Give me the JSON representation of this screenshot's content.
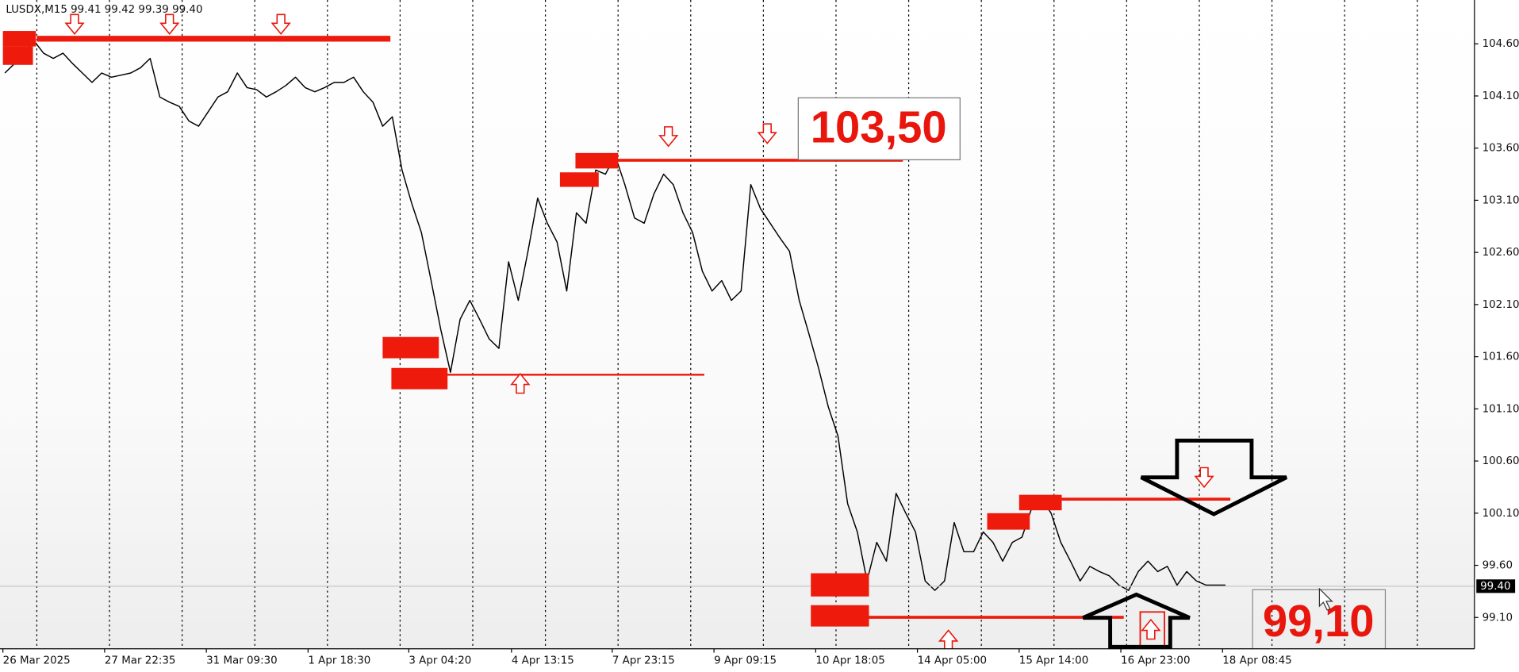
{
  "chart_data": {
    "type": "line",
    "title": "LUSDX,M15  99.41 99.42 99.39 99.40",
    "annotations": [
      "103,50",
      "99,10"
    ],
    "color": "#000000",
    "x": [
      5,
      15,
      25,
      35,
      45,
      55,
      65,
      75,
      85,
      95,
      105,
      115,
      125,
      135,
      145,
      155,
      165,
      175,
      185,
      195,
      205,
      215,
      225,
      235,
      245,
      255,
      265,
      275,
      285,
      295,
      305,
      315,
      325,
      335,
      345,
      355,
      365,
      375,
      385,
      395,
      405,
      415,
      425,
      435,
      445,
      455,
      465,
      475,
      485,
      495,
      505,
      515,
      525,
      535,
      545,
      555,
      565,
      575,
      585,
      595,
      605,
      615,
      625,
      635,
      645,
      655,
      665,
      675,
      685,
      695,
      705,
      715,
      725,
      735,
      745,
      755,
      765,
      775,
      785,
      795,
      805,
      815,
      825,
      835,
      845,
      855,
      865,
      875,
      885,
      895,
      905,
      915,
      925,
      935,
      945,
      955,
      965,
      975,
      985,
      995,
      1005,
      1015,
      1025,
      1035,
      1045,
      1055,
      1065,
      1075,
      1085,
      1095,
      1105,
      1115,
      1125,
      1135,
      1145,
      1155,
      1165,
      1175,
      1185,
      1195,
      1205,
      1215,
      1225,
      1235,
      1245,
      1255,
      1265
    ],
    "values": [
      104.32,
      104.41,
      104.51,
      104.63,
      104.51,
      104.46,
      104.51,
      104.41,
      104.32,
      104.23,
      104.32,
      104.28,
      104.3,
      104.32,
      104.37,
      104.46,
      104.09,
      104.04,
      104.0,
      103.86,
      103.81,
      103.95,
      104.09,
      104.14,
      104.32,
      104.18,
      104.16,
      104.09,
      104.14,
      104.2,
      104.28,
      104.18,
      104.14,
      104.18,
      104.23,
      104.23,
      104.28,
      104.14,
      104.04,
      103.81,
      103.9,
      103.39,
      103.07,
      102.79,
      102.33,
      101.86,
      101.45,
      101.96,
      102.14,
      101.96,
      101.77,
      101.68,
      102.51,
      102.14,
      102.61,
      103.12,
      102.88,
      102.7,
      102.23,
      102.98,
      102.88,
      103.39,
      103.35,
      103.53,
      103.25,
      102.93,
      102.88,
      103.16,
      103.35,
      103.25,
      102.98,
      102.79,
      102.42,
      102.23,
      102.33,
      102.14,
      102.23,
      103.25,
      103.02,
      102.88,
      102.74,
      102.61,
      102.14,
      101.82,
      101.49,
      101.12,
      100.84,
      100.19,
      99.92,
      99.45,
      99.82,
      99.64,
      100.29,
      100.1,
      99.92,
      99.45,
      99.36,
      99.45,
      100.01,
      99.73,
      99.73,
      99.92,
      99.82,
      99.64,
      99.82,
      99.87,
      100.15,
      100.24,
      100.1,
      99.82,
      99.64,
      99.45,
      99.59,
      99.54,
      99.5,
      99.41,
      99.36,
      99.54,
      99.64,
      99.54,
      99.59,
      99.41,
      99.54,
      99.45,
      99.41,
      99.41,
      99.41
    ],
    "xlim": [
      0,
      1522
    ],
    "xticks": [
      {
        "value": 3,
        "label": "26 Mar 2025"
      },
      {
        "value": 108,
        "label": "27 Mar 22:35"
      },
      {
        "value": 213,
        "label": "31 Mar 09:30"
      },
      {
        "value": 318,
        "label": "1 Apr 18:30"
      },
      {
        "value": 422,
        "label": "3 Apr 04:20"
      },
      {
        "value": 528,
        "label": "4 Apr 13:15"
      },
      {
        "value": 632,
        "label": "7 Apr 23:15"
      },
      {
        "value": 737,
        "label": "9 Apr 09:15"
      },
      {
        "value": 842,
        "label": "10 Apr 18:05"
      },
      {
        "value": 947,
        "label": "14 Apr 05:00"
      },
      {
        "value": 1052,
        "label": "15 Apr 14:00"
      },
      {
        "value": 1157,
        "label": "16 Apr 23:00"
      },
      {
        "value": 1262,
        "label": "18 Apr 08:45"
      }
    ],
    "ylim": [
      98.8,
      105.02
    ],
    "yticks": [
      {
        "value": 104.6,
        "label": "104.60"
      },
      {
        "value": 104.1,
        "label": "104.10"
      },
      {
        "value": 103.6,
        "label": "103.60"
      },
      {
        "value": 103.1,
        "label": "103.10"
      },
      {
        "value": 102.6,
        "label": "102.60"
      },
      {
        "value": 102.1,
        "label": "102.10"
      },
      {
        "value": 101.6,
        "label": "101.60"
      },
      {
        "value": 101.1,
        "label": "101.10"
      },
      {
        "value": 100.6,
        "label": "100.60"
      },
      {
        "value": 100.1,
        "label": "100.10"
      },
      {
        "value": 99.6,
        "label": "99.60"
      },
      {
        "value": 99.1,
        "label": "99.10"
      }
    ],
    "last_price": {
      "value": 99.4,
      "label": "99.40"
    }
  }
}
